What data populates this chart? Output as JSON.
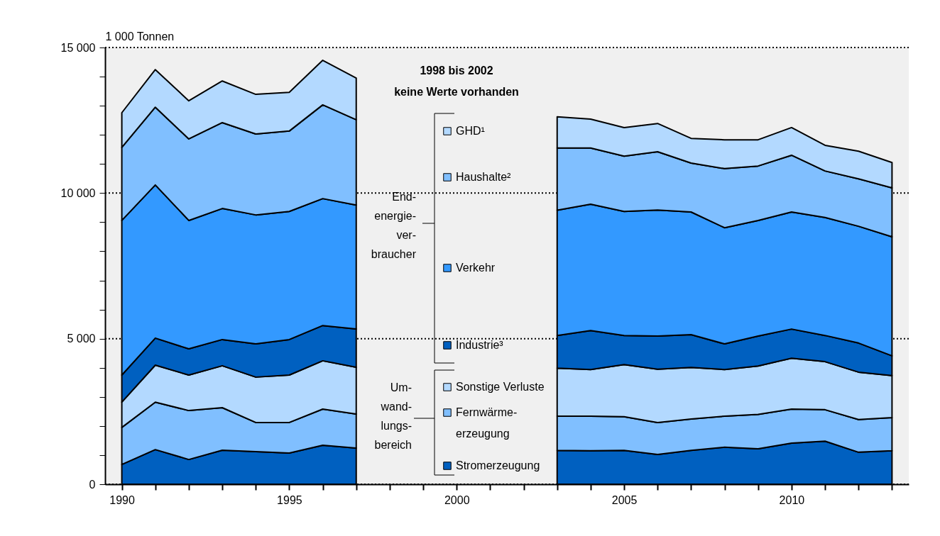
{
  "chart_data": {
    "type": "area",
    "stacked": true,
    "ylabel": "1 000 Tonnen",
    "annotations": [
      "1998 bis 2002\nkeine Werte vorhanden",
      "End-\nenergie-\nver-\nbraucher",
      "Um-\nwand-\nlungs-\nbereich"
    ],
    "x": [
      1990,
      1991,
      1992,
      1993,
      1994,
      1995,
      1996,
      1997,
      1998,
      1999,
      2000,
      2001,
      2002,
      2003,
      2004,
      2005,
      2006,
      2007,
      2008,
      2009,
      2010,
      2011,
      2012,
      2013
    ],
    "series": [
      {
        "name": "Stromerzeugung",
        "color": "#0060c0",
        "values": [
          680,
          1190,
          850,
          1170,
          1120,
          1070,
          1340,
          1240,
          null,
          null,
          null,
          null,
          null,
          1160,
          1150,
          1160,
          1020,
          1160,
          1270,
          1220,
          1410,
          1480,
          1100,
          1150
        ]
      },
      {
        "name": "Fernwärme-\nerzeugung",
        "color": "#80bfff",
        "values": [
          1270,
          1630,
          1680,
          1460,
          1000,
          1050,
          1240,
          1170,
          null,
          null,
          null,
          null,
          null,
          1180,
          1190,
          1160,
          1100,
          1080,
          1070,
          1180,
          1170,
          1080,
          1120,
          1140
        ]
      },
      {
        "name": "Sonstige Verluste",
        "color": "#b3d9ff",
        "values": [
          870,
          1270,
          1220,
          1440,
          1560,
          1630,
          1660,
          1610,
          null,
          null,
          null,
          null,
          null,
          1650,
          1600,
          1790,
          1830,
          1770,
          1600,
          1660,
          1750,
          1650,
          1630,
          1440
        ]
      },
      {
        "name": "Industrie³",
        "color": "#0060c0",
        "values": [
          930,
          930,
          900,
          900,
          1140,
          1220,
          1210,
          1310,
          null,
          null,
          null,
          null,
          null,
          1120,
          1340,
          1000,
          1140,
          1130,
          880,
          1030,
          1000,
          900,
          1000,
          680
        ]
      },
      {
        "name": "Verkehr",
        "color": "#3399ff",
        "values": [
          5310,
          5260,
          4410,
          4500,
          4430,
          4400,
          4360,
          4260,
          null,
          null,
          null,
          null,
          null,
          4300,
          4340,
          4260,
          4330,
          4210,
          3990,
          3970,
          4020,
          4050,
          4010,
          4090
        ]
      },
      {
        "name": "Haushalte²",
        "color": "#80bfff",
        "values": [
          2510,
          2670,
          2800,
          2950,
          2780,
          2760,
          3220,
          2930,
          null,
          null,
          null,
          null,
          null,
          2140,
          1930,
          1900,
          2000,
          1680,
          2030,
          1870,
          1950,
          1600,
          1630,
          1680
        ]
      },
      {
        "name": "GHD¹",
        "color": "#b3d9ff",
        "values": [
          1190,
          1290,
          1310,
          1430,
          1360,
          1330,
          1530,
          1430,
          null,
          null,
          null,
          null,
          null,
          1070,
          990,
          980,
          970,
          850,
          990,
          900,
          950,
          880,
          950,
          870
        ]
      }
    ],
    "xlim": [
      1989.5,
      2013.5
    ],
    "xticks": [
      1990,
      {
        "value": 1991,
        "label": null
      },
      {
        "value": 1992,
        "label": null
      },
      {
        "value": 1993,
        "label": null
      },
      {
        "value": 1994,
        "label": null
      },
      1995,
      {
        "value": 1996,
        "label": null
      },
      {
        "value": 1997,
        "label": null
      },
      {
        "value": 1998,
        "label": null
      },
      {
        "value": 1999,
        "label": null
      },
      2000,
      {
        "value": 2001,
        "label": null
      },
      {
        "value": 2002,
        "label": null
      },
      {
        "value": 2003,
        "label": null
      },
      {
        "value": 2004,
        "label": null
      },
      2005,
      {
        "value": 2006,
        "label": null
      },
      {
        "value": 2007,
        "label": null
      },
      {
        "value": 2008,
        "label": null
      },
      {
        "value": 2009,
        "label": null
      },
      2010,
      {
        "value": 2011,
        "label": null
      },
      {
        "value": 2012,
        "label": null
      },
      {
        "value": 2013,
        "label": null
      }
    ],
    "ylim": [
      0,
      15000
    ],
    "yticks": [
      0,
      {
        "value": 1000,
        "label": null
      },
      {
        "value": 2000,
        "label": null
      },
      {
        "value": 3000,
        "label": null
      },
      {
        "value": 4000,
        "label": null
      },
      {
        "value": 5000,
        "label": "5 000"
      },
      {
        "value": 6000,
        "label": null
      },
      {
        "value": 7000,
        "label": null
      },
      {
        "value": 8000,
        "label": null
      },
      {
        "value": 9000,
        "label": null
      },
      {
        "value": 10000,
        "label": "10 000"
      },
      {
        "value": 11000,
        "label": null
      },
      {
        "value": 12000,
        "label": null
      },
      {
        "value": 13000,
        "label": null
      },
      {
        "value": 14000,
        "label": null
      },
      {
        "value": 15000,
        "label": "15 000"
      }
    ],
    "grid": "y",
    "legend": "center"
  }
}
